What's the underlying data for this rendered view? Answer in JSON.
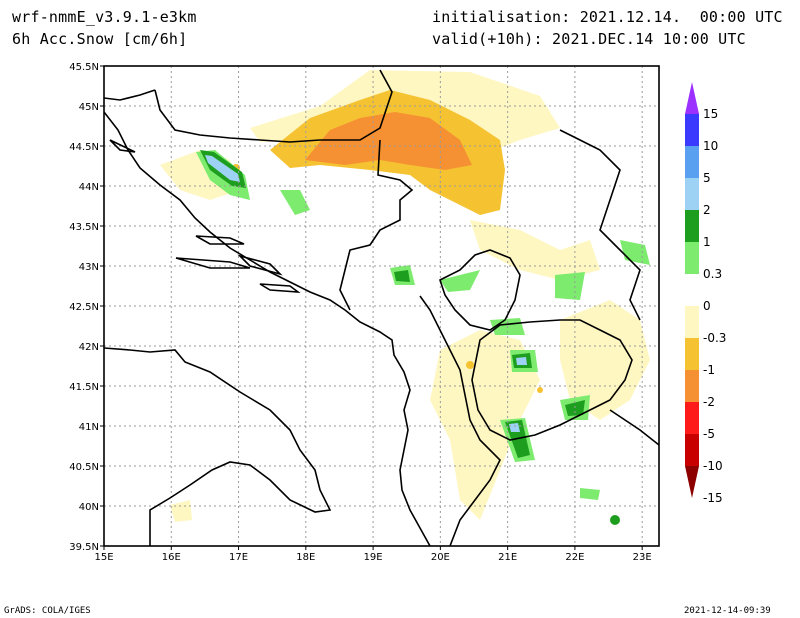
{
  "header": {
    "model": "wrf-nmmE_v3.9.1-e3km",
    "variable": "6h Acc.Snow [cm/6h]",
    "init": "initialisation: 2021.12.14.  00:00 UTC",
    "valid": "valid(+10h): 2021.DEC.14 10:00 UTC"
  },
  "footer": {
    "left": "GrADS: COLA/IGES",
    "right": "2021-12-14-09:39"
  },
  "map": {
    "lon_ticks": [
      "15E",
      "16E",
      "17E",
      "18E",
      "19E",
      "20E",
      "21E",
      "22E",
      "23E"
    ],
    "lat_ticks": [
      "45.5N",
      "45N",
      "44.5N",
      "44N",
      "43.5N",
      "43N",
      "42.5N",
      "42N",
      "41.5N",
      "41N",
      "40.5N",
      "40N",
      "39.5N"
    ],
    "lon_range": [
      15,
      23.25
    ],
    "lat_range": [
      39.5,
      45.5
    ],
    "grid": true
  },
  "colorbar": {
    "labels": [
      "15",
      "10",
      "5",
      "2",
      "1",
      "0.3",
      "0",
      "-0.3",
      "-1",
      "-2",
      "-5",
      "-10",
      "-15"
    ],
    "colors": [
      "#9b30ff",
      "#3a3aff",
      "#5aa0f0",
      "#9ed2f5",
      "#1e9e1e",
      "#7deb6e",
      "#ffffff",
      "#fff7c2",
      "#f5c232",
      "#f59132",
      "#ff1a1a",
      "#c80000",
      "#8c0000"
    ]
  }
}
